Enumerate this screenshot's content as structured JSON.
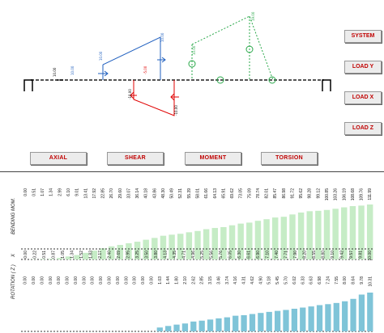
{
  "side_buttons": [
    "SYSTEM",
    "LOAD Y",
    "LOAD X",
    "LOAD Z"
  ],
  "bottom_buttons": [
    "AXIAL",
    "SHEAR",
    "MOMENT",
    "TORSION"
  ],
  "diagram": {
    "axial": [
      "10.00",
      "-10.00"
    ],
    "load_y": [
      "-10.00",
      "10.00"
    ],
    "shear": [
      "-5.00",
      "5.00",
      "10.00",
      "-10.00"
    ],
    "moment": [
      "19.00",
      "10.00",
      "0.00",
      "-5.00"
    ],
    "torsion": [
      "10.00",
      "20.00"
    ],
    "vertical_labels": [
      "10.00",
      "6.50",
      "0.00",
      "6.00",
      "-10.00",
      "5.00",
      "5.00"
    ]
  },
  "charts": {
    "bending": {
      "label": "BENDING MOM.",
      "values": [
        "0.00",
        "0.51",
        "1.07",
        "1.34",
        "2.99",
        "6.10",
        "9.01",
        "13.41",
        "17.92",
        "22.85",
        "26.70",
        "29.60",
        "33.07",
        "36.14",
        "40.18",
        "43.86",
        "48.30",
        "50.49",
        "52.31",
        "55.39",
        "58.01",
        "61.66",
        "64.13",
        "65.91",
        "69.62",
        "73.05",
        "75.09",
        "78.74",
        "82.01",
        "85.47",
        "86.98",
        "91.72",
        "95.62",
        "98.28",
        "99.12",
        "100.85",
        "103.26",
        "106.19",
        "108.68",
        "109.76",
        "111.99"
      ]
    },
    "x": {
      "label": "X",
      "values": [
        "0.00",
        "0.22",
        "0.51",
        "0.87",
        "1.05",
        "1.34",
        "1.52",
        "1.83",
        "2.17",
        "2.40",
        "2.69",
        "2.95",
        "3.25",
        "3.50",
        "3.80",
        "4.13",
        "4.35",
        "4.71",
        "4.96",
        "5.25",
        "5.56",
        "5.76",
        "6.05",
        "6.30",
        "6.61",
        "6.90",
        "7.10",
        "7.40",
        "7.71",
        "7.90",
        "8.20",
        "8.55",
        "8.80",
        "9.10",
        "9.42",
        "9.57",
        "9.81",
        "10.00"
      ]
    },
    "rotation": {
      "label": "ROTATION ( Z )",
      "values": [
        "0.00",
        "0.00",
        "0.00",
        "0.00",
        "0.00",
        "0.00",
        "0.00",
        "0.00",
        "0.00",
        "0.00",
        "0.00",
        "0.00",
        "0.00",
        "0.00",
        "0.00",
        "0.00",
        "1.03",
        "1.44",
        "1.80",
        "2.10",
        "2.62",
        "2.85",
        "3.15",
        "3.46",
        "3.74",
        "4.16",
        "4.31",
        "4.62",
        "4.90",
        "5.18",
        "5.45",
        "5.70",
        "6.02",
        "6.33",
        "6.63",
        "6.98",
        "7.24",
        "7.55",
        "8.00",
        "8.64",
        "9.78",
        "10.31"
      ]
    }
  },
  "colors": {
    "label": "#c00000",
    "blue": "#1f5fbf",
    "red": "#e00000",
    "green": "#2aa84a",
    "green_bar": "#c6ecc6",
    "blue_bar": "#7fc4d8"
  }
}
